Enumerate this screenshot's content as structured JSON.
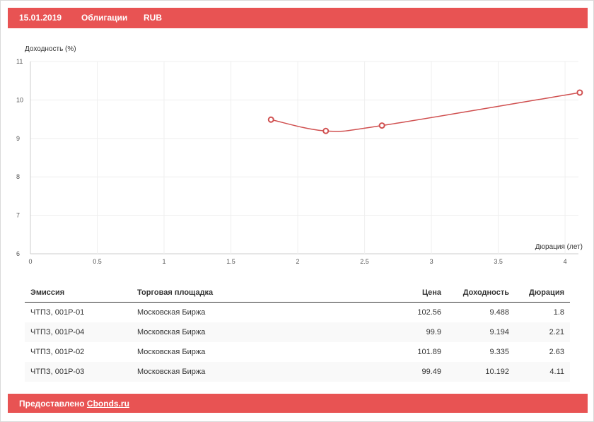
{
  "header": {
    "date": "15.01.2019",
    "type": "Облигации",
    "currency": "RUB"
  },
  "chart_data": {
    "type": "line",
    "title": "",
    "ylabel": "Доходность (%)",
    "xlabel": "Дюрация (лет)",
    "xlim": [
      0,
      4.1
    ],
    "ylim": [
      6,
      11
    ],
    "x_ticks": [
      "0",
      "0.5",
      "1",
      "1.5",
      "2",
      "2.5",
      "3",
      "3.5",
      "4"
    ],
    "y_ticks": [
      "6",
      "7",
      "8",
      "9",
      "10",
      "11"
    ],
    "grid": true,
    "legend": "none",
    "series": [
      {
        "color": "#d05050",
        "points": [
          {
            "x": 1.8,
            "y": 9.488
          },
          {
            "x": 2.21,
            "y": 9.194
          },
          {
            "x": 2.63,
            "y": 9.335
          },
          {
            "x": 4.11,
            "y": 10.192
          }
        ]
      }
    ]
  },
  "table": {
    "headers": [
      "Эмиссия",
      "Торговая площадка",
      "Цена",
      "Доходность",
      "Дюрация"
    ],
    "rows": [
      [
        "ЧТПЗ, 001P-01",
        "Московская Биржа",
        "102.56",
        "9.488",
        "1.8"
      ],
      [
        "ЧТПЗ, 001P-04",
        "Московская Биржа",
        "99.9",
        "9.194",
        "2.21"
      ],
      [
        "ЧТПЗ, 001P-02",
        "Московская Биржа",
        "101.89",
        "9.335",
        "2.63"
      ],
      [
        "ЧТПЗ, 001P-03",
        "Московская Биржа",
        "99.49",
        "10.192",
        "4.11"
      ]
    ]
  },
  "footer": {
    "provided_by": "Предоставлено",
    "link": "Cbonds.ru"
  },
  "colors": {
    "accent": "#e85353",
    "line": "#d05050"
  }
}
